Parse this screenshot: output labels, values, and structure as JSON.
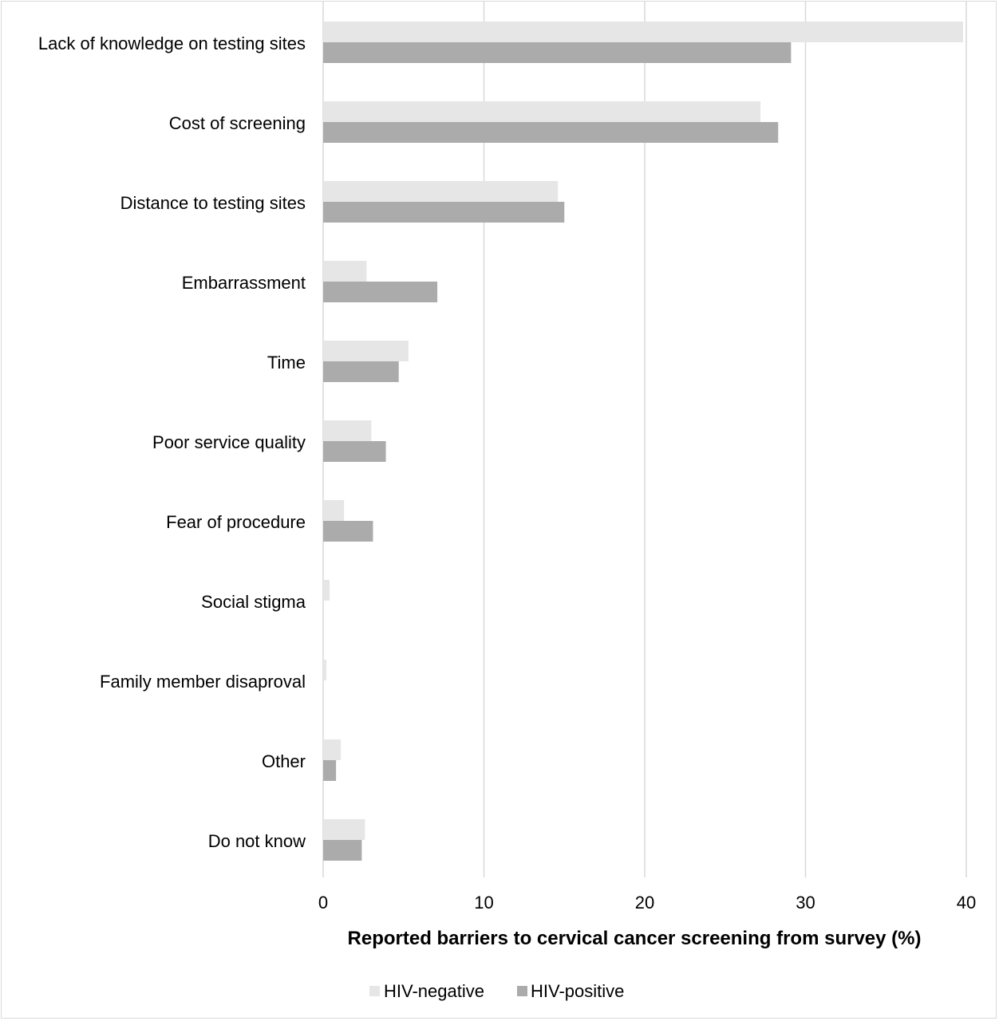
{
  "chart_data": {
    "type": "bar",
    "orientation": "horizontal",
    "categories": [
      "Lack of knowledge on testing sites",
      "Cost of screening",
      "Distance to testing sites",
      "Embarrassment",
      "Time",
      "Poor service quality",
      "Fear of procedure",
      "Social stigma",
      "Family member disaproval",
      "Other",
      "Do not know"
    ],
    "series": [
      {
        "name": "HIV-negative",
        "color": "#e6e6e6",
        "values": [
          39.8,
          27.2,
          14.6,
          2.7,
          5.3,
          3.0,
          1.3,
          0.4,
          0.2,
          1.1,
          2.6
        ]
      },
      {
        "name": "HIV-positive",
        "color": "#ababab",
        "values": [
          29.1,
          28.3,
          15.0,
          7.1,
          4.7,
          3.9,
          3.1,
          0.0,
          0.0,
          0.8,
          2.4
        ]
      }
    ],
    "xlim": [
      0,
      40
    ],
    "xticks": [
      0,
      10,
      20,
      30,
      40
    ],
    "xlabel": "Reported barriers to cervical cancer screening from survey (%)",
    "ylabel": "",
    "title": "",
    "grid": true,
    "legend_position": "bottom"
  }
}
